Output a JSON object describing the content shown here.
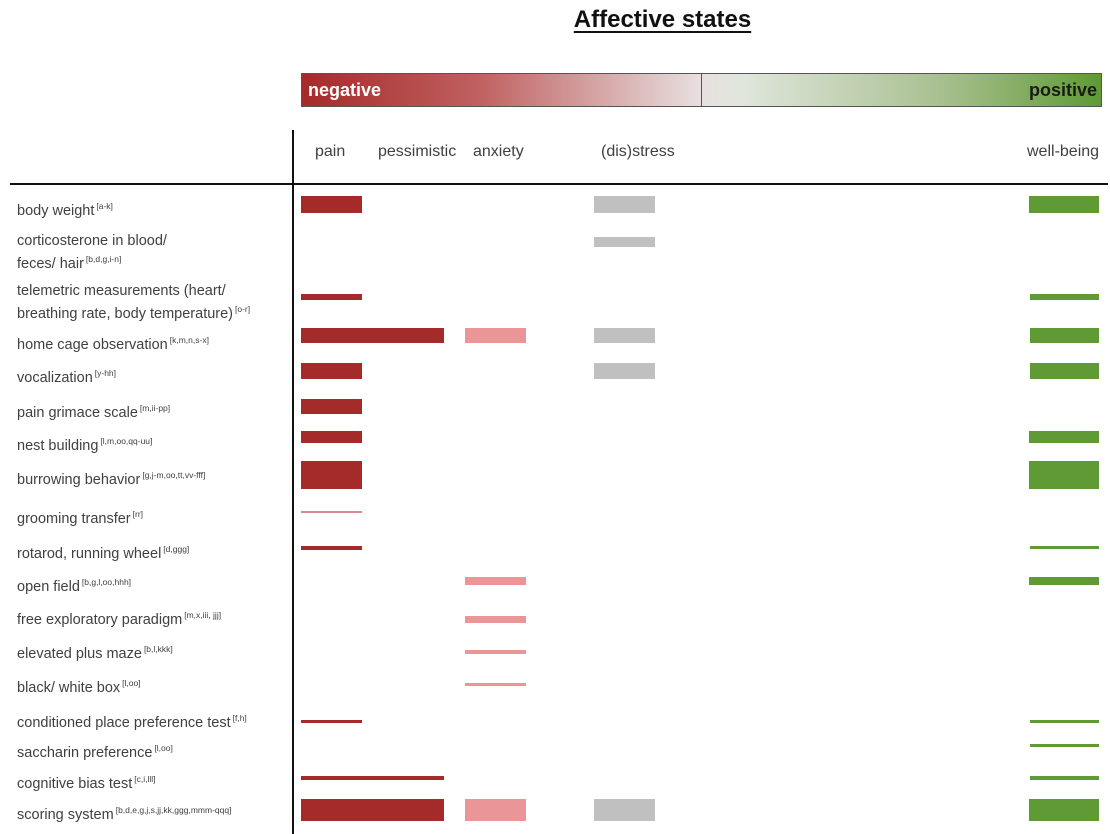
{
  "title": "Affective states",
  "scale": {
    "negative_label": "negative",
    "positive_label": "positive"
  },
  "columns": [
    {
      "key": "pain",
      "label": "pain"
    },
    {
      "key": "pessimistic",
      "label": "pessimistic"
    },
    {
      "key": "anxiety",
      "label": "anxiety"
    },
    {
      "key": "distress",
      "label": "(dis)stress"
    },
    {
      "key": "wellbeing",
      "label": "well-being"
    }
  ],
  "colors": {
    "pain": "#a52a2a",
    "anxiety": "#eb9696",
    "distress": "#c0c0c0",
    "wellbeing": "#5f9a35",
    "grooming": "#d98a8a"
  },
  "rows": [
    {
      "label": "body weight",
      "refs": "[a-k]"
    },
    {
      "label": "corticosterone in blood/",
      "label2": "feces/ hair",
      "refs": "[b,d,g,i-n]"
    },
    {
      "label": "telemetric measurements (heart/",
      "label2": "breathing rate, body temperature)",
      "refs": "[o-r]"
    },
    {
      "label": "home cage observation",
      "refs": "[k,m,n,s-x]"
    },
    {
      "label": "vocalization",
      "refs": "[y-hh]"
    },
    {
      "label": "pain grimace  scale",
      "refs": "[m,ii-pp]"
    },
    {
      "label": "nest building",
      "refs": "[l,m,oo,qq-uu]"
    },
    {
      "label": "burrowing behavior",
      "refs": "[g,j-m,oo,tt,vv-fff]"
    },
    {
      "label": "grooming transfer",
      "refs": "[rr]"
    },
    {
      "label": "rotarod, running wheel",
      "refs": "[d,ggg]"
    },
    {
      "label": "open field",
      "refs": "[b,g,l,oo,hhh]"
    },
    {
      "label": "free exploratory paradigm",
      "refs": "[m,x,iii, jjj]"
    },
    {
      "label": "elevated plus maze",
      "refs": "[b,l,kkk]"
    },
    {
      "label": "black/ white box",
      "refs": "[l,oo]"
    },
    {
      "label": "conditioned place preference test",
      "refs": "[f,h]"
    },
    {
      "label": "saccharin preference",
      "refs": "[l,oo]"
    },
    {
      "label": "cognitive bias test",
      "refs": "[c,i,lll]"
    },
    {
      "label": "scoring system",
      "refs": "[b,d,e,g,j,s,jj,kk,ggg,mmm-qqq]"
    }
  ]
}
